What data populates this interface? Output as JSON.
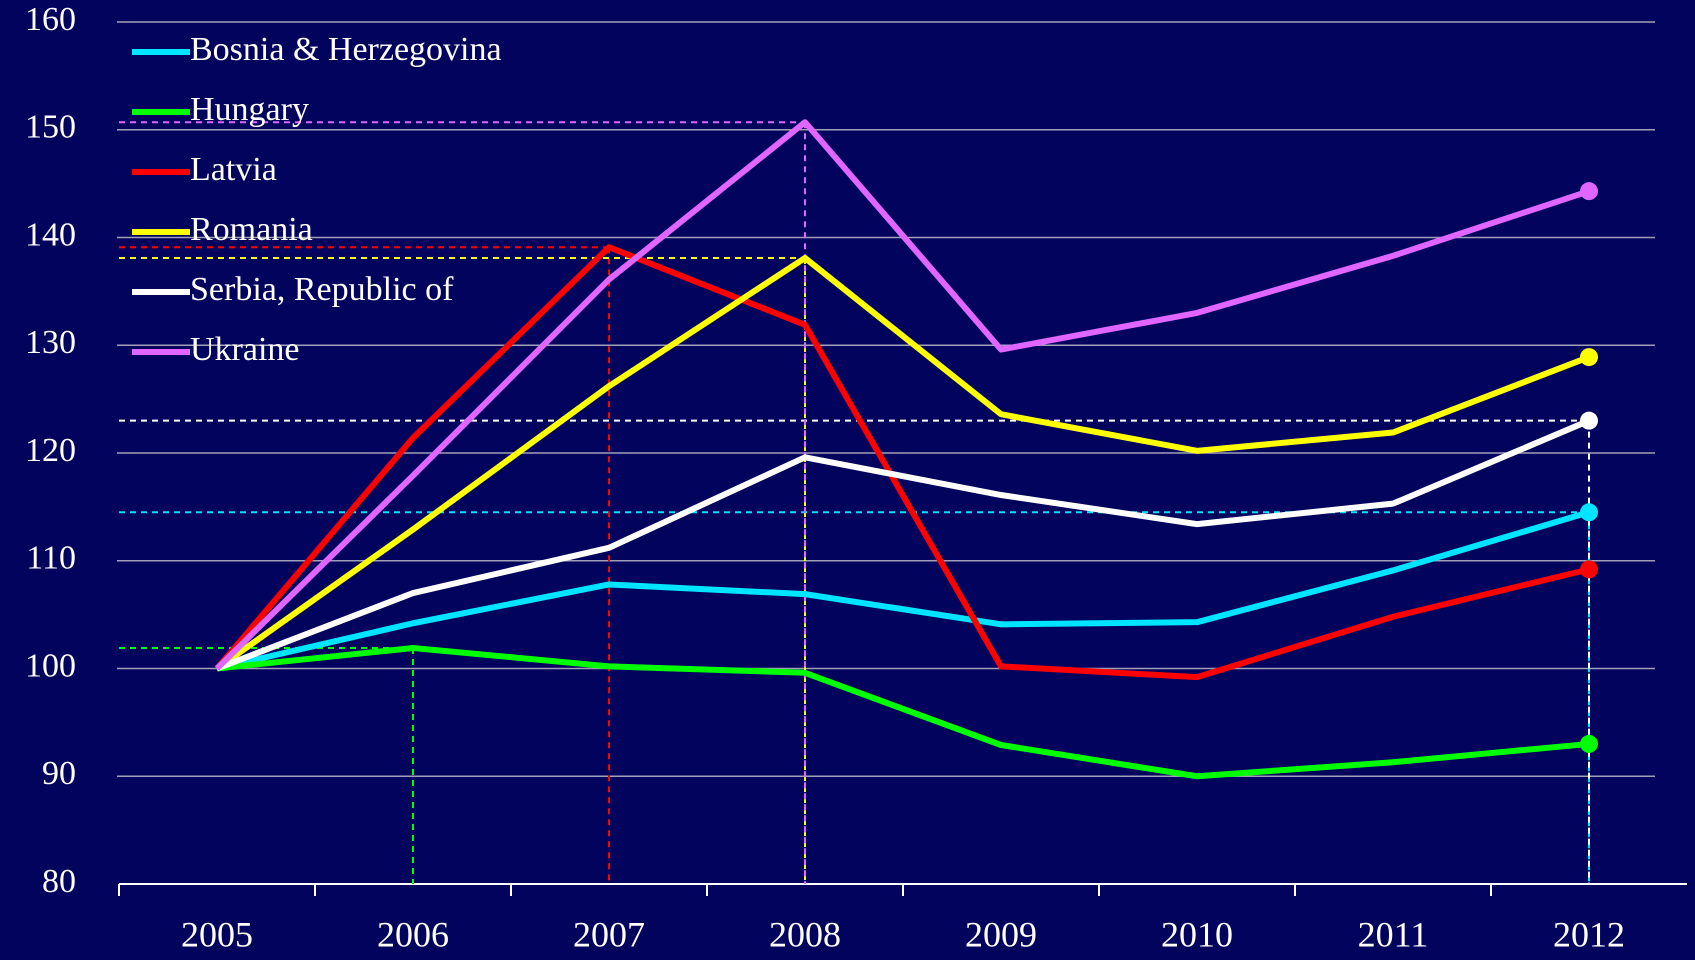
{
  "chart_data": {
    "type": "line",
    "categories": [
      "2005",
      "2006",
      "2007",
      "2008",
      "2009",
      "2010",
      "2011",
      "2012"
    ],
    "series": [
      {
        "name": "Bosnia & Herzegovina",
        "color": "#00e5ff",
        "values": [
          100,
          104.2,
          107.8,
          106.9,
          104.1,
          104.3,
          109.1,
          114.5
        ]
      },
      {
        "name": "Hungary",
        "color": "#00ff00",
        "values": [
          100,
          101.9,
          100.2,
          99.6,
          92.9,
          90.0,
          91.3,
          93.0
        ]
      },
      {
        "name": "Latvia",
        "color": "#ff0000",
        "values": [
          100,
          121.4,
          139.1,
          131.9,
          100.2,
          99.2,
          104.8,
          109.2
        ]
      },
      {
        "name": "Romania",
        "color": "#ffff00",
        "values": [
          100,
          112.9,
          126.2,
          138.1,
          123.6,
          120.2,
          121.9,
          128.9
        ]
      },
      {
        "name": "Serbia, Republic of",
        "color": "#ffffff",
        "values": [
          100,
          107.0,
          111.2,
          119.6,
          116.1,
          113.4,
          115.3,
          123.0
        ]
      },
      {
        "name": "Ukraine",
        "color": "#e066ff",
        "values": [
          100,
          117.9,
          136.1,
          150.7,
          129.6,
          133.0,
          138.3,
          144.3
        ]
      }
    ],
    "ylim": [
      80,
      160
    ],
    "yticks": [
      80,
      90,
      100,
      110,
      120,
      130,
      140,
      150,
      160
    ],
    "grid": true,
    "legend": "upper left"
  }
}
